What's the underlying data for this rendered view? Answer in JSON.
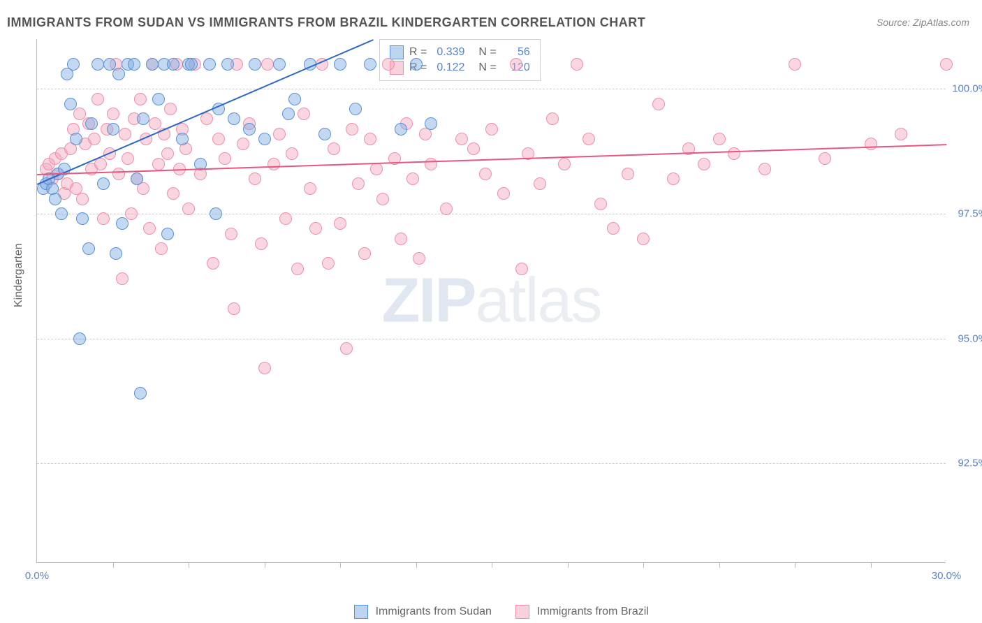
{
  "title": "IMMIGRANTS FROM SUDAN VS IMMIGRANTS FROM BRAZIL KINDERGARTEN CORRELATION CHART",
  "source": "Source: ZipAtlas.com",
  "ylabel": "Kindergarten",
  "watermark_bold": "ZIP",
  "watermark_light": "atlas",
  "chart": {
    "type": "scatter",
    "xlim": [
      0,
      30
    ],
    "ylim": [
      90.5,
      101.0
    ],
    "y_ticks": [
      92.5,
      95.0,
      97.5,
      100.0
    ],
    "y_tick_labels": [
      "92.5%",
      "95.0%",
      "97.5%",
      "100.0%"
    ],
    "x_tick_labels": [
      "0.0%",
      "30.0%"
    ],
    "x_minor_ticks": [
      2.5,
      5.0,
      7.5,
      10.0,
      12.5,
      15.0,
      17.5,
      20.0,
      22.5,
      25.0,
      27.5
    ],
    "background_color": "#ffffff",
    "grid_color": "#cccccc",
    "series": {
      "sudan": {
        "label": "Immigrants from Sudan",
        "color_fill": "rgba(123,171,227,0.45)",
        "color_stroke": "#5a8fd6",
        "marker_radius": 9,
        "R": 0.339,
        "N": 56,
        "trend": {
          "x1": 0,
          "y1": 98.1,
          "x2": 11.1,
          "y2": 101.0,
          "color": "#2d66c9"
        },
        "points": [
          [
            0.2,
            98.0
          ],
          [
            0.3,
            98.1
          ],
          [
            0.4,
            98.2
          ],
          [
            0.5,
            98.0
          ],
          [
            0.6,
            97.8
          ],
          [
            0.7,
            98.3
          ],
          [
            0.8,
            97.5
          ],
          [
            0.9,
            98.4
          ],
          [
            1.0,
            100.3
          ],
          [
            1.1,
            99.7
          ],
          [
            1.2,
            100.5
          ],
          [
            1.3,
            99.0
          ],
          [
            1.4,
            95.0
          ],
          [
            1.5,
            97.4
          ],
          [
            1.7,
            96.8
          ],
          [
            1.8,
            99.3
          ],
          [
            2.0,
            100.5
          ],
          [
            2.2,
            98.1
          ],
          [
            2.4,
            100.5
          ],
          [
            2.5,
            99.2
          ],
          [
            2.6,
            96.7
          ],
          [
            2.7,
            100.3
          ],
          [
            2.8,
            97.3
          ],
          [
            3.0,
            100.5
          ],
          [
            3.2,
            100.5
          ],
          [
            3.3,
            98.2
          ],
          [
            3.4,
            93.9
          ],
          [
            3.5,
            99.4
          ],
          [
            3.8,
            100.5
          ],
          [
            4.0,
            99.8
          ],
          [
            4.2,
            100.5
          ],
          [
            4.3,
            97.1
          ],
          [
            4.5,
            100.5
          ],
          [
            4.8,
            99.0
          ],
          [
            5.0,
            100.5
          ],
          [
            5.1,
            100.5
          ],
          [
            5.4,
            98.5
          ],
          [
            5.7,
            100.5
          ],
          [
            5.9,
            97.5
          ],
          [
            6.0,
            99.6
          ],
          [
            6.3,
            100.5
          ],
          [
            6.5,
            99.4
          ],
          [
            7.0,
            99.2
          ],
          [
            7.2,
            100.5
          ],
          [
            7.5,
            99.0
          ],
          [
            8.0,
            100.5
          ],
          [
            8.3,
            99.5
          ],
          [
            8.5,
            99.8
          ],
          [
            9.0,
            100.5
          ],
          [
            9.5,
            99.1
          ],
          [
            10.0,
            100.5
          ],
          [
            10.5,
            99.6
          ],
          [
            11.0,
            100.5
          ],
          [
            12.0,
            99.2
          ],
          [
            12.5,
            100.5
          ],
          [
            13.0,
            99.3
          ]
        ]
      },
      "brazil": {
        "label": "Immigrants from Brazil",
        "color_fill": "rgba(244,164,186,0.45)",
        "color_stroke": "#eb8fab",
        "marker_radius": 9,
        "R": 0.122,
        "N": 120,
        "trend": {
          "x1": 0,
          "y1": 98.3,
          "x2": 30,
          "y2": 98.9,
          "color": "#e6567e"
        },
        "points": [
          [
            0.3,
            98.4
          ],
          [
            0.4,
            98.5
          ],
          [
            0.5,
            98.2
          ],
          [
            0.6,
            98.6
          ],
          [
            0.7,
            98.3
          ],
          [
            0.8,
            98.7
          ],
          [
            0.9,
            97.9
          ],
          [
            1.0,
            98.1
          ],
          [
            1.1,
            98.8
          ],
          [
            1.2,
            99.2
          ],
          [
            1.3,
            98.0
          ],
          [
            1.4,
            99.5
          ],
          [
            1.5,
            97.8
          ],
          [
            1.6,
            98.9
          ],
          [
            1.7,
            99.3
          ],
          [
            1.8,
            98.4
          ],
          [
            1.9,
            99.0
          ],
          [
            2.0,
            99.8
          ],
          [
            2.1,
            98.5
          ],
          [
            2.2,
            97.4
          ],
          [
            2.3,
            99.2
          ],
          [
            2.4,
            98.7
          ],
          [
            2.5,
            99.5
          ],
          [
            2.6,
            100.5
          ],
          [
            2.7,
            98.3
          ],
          [
            2.8,
            96.2
          ],
          [
            2.9,
            99.1
          ],
          [
            3.0,
            98.6
          ],
          [
            3.1,
            97.5
          ],
          [
            3.2,
            99.4
          ],
          [
            3.3,
            98.2
          ],
          [
            3.4,
            99.8
          ],
          [
            3.5,
            98.0
          ],
          [
            3.6,
            99.0
          ],
          [
            3.7,
            97.2
          ],
          [
            3.8,
            100.5
          ],
          [
            3.9,
            99.3
          ],
          [
            4.0,
            98.5
          ],
          [
            4.1,
            96.8
          ],
          [
            4.2,
            99.1
          ],
          [
            4.3,
            98.7
          ],
          [
            4.4,
            99.6
          ],
          [
            4.5,
            97.9
          ],
          [
            4.6,
            100.5
          ],
          [
            4.7,
            98.4
          ],
          [
            4.8,
            99.2
          ],
          [
            4.9,
            98.8
          ],
          [
            5.0,
            97.6
          ],
          [
            5.2,
            100.5
          ],
          [
            5.4,
            98.3
          ],
          [
            5.6,
            99.4
          ],
          [
            5.8,
            96.5
          ],
          [
            6.0,
            99.0
          ],
          [
            6.2,
            98.6
          ],
          [
            6.4,
            97.1
          ],
          [
            6.5,
            95.6
          ],
          [
            6.6,
            100.5
          ],
          [
            6.8,
            98.9
          ],
          [
            7.0,
            99.3
          ],
          [
            7.2,
            98.2
          ],
          [
            7.4,
            96.9
          ],
          [
            7.5,
            94.4
          ],
          [
            7.6,
            100.5
          ],
          [
            7.8,
            98.5
          ],
          [
            8.0,
            99.1
          ],
          [
            8.2,
            97.4
          ],
          [
            8.4,
            98.7
          ],
          [
            8.6,
            96.4
          ],
          [
            8.8,
            99.5
          ],
          [
            9.0,
            98.0
          ],
          [
            9.2,
            97.2
          ],
          [
            9.4,
            100.5
          ],
          [
            9.6,
            96.5
          ],
          [
            9.8,
            98.8
          ],
          [
            10.0,
            97.3
          ],
          [
            10.2,
            94.8
          ],
          [
            10.4,
            99.2
          ],
          [
            10.6,
            98.1
          ],
          [
            10.8,
            96.7
          ],
          [
            11.0,
            99.0
          ],
          [
            11.2,
            98.4
          ],
          [
            11.4,
            97.8
          ],
          [
            11.6,
            100.5
          ],
          [
            11.8,
            98.6
          ],
          [
            12.0,
            97.0
          ],
          [
            12.2,
            99.3
          ],
          [
            12.4,
            98.2
          ],
          [
            12.6,
            96.6
          ],
          [
            12.8,
            99.1
          ],
          [
            13.0,
            98.5
          ],
          [
            13.5,
            97.6
          ],
          [
            14.0,
            99.0
          ],
          [
            14.4,
            98.8
          ],
          [
            14.8,
            98.3
          ],
          [
            15.0,
            99.2
          ],
          [
            15.4,
            97.9
          ],
          [
            15.8,
            100.5
          ],
          [
            16.0,
            96.4
          ],
          [
            16.2,
            98.7
          ],
          [
            16.6,
            98.1
          ],
          [
            17.0,
            99.4
          ],
          [
            17.4,
            98.5
          ],
          [
            17.8,
            100.5
          ],
          [
            18.2,
            99.0
          ],
          [
            18.6,
            97.7
          ],
          [
            19.0,
            97.2
          ],
          [
            19.5,
            98.3
          ],
          [
            20.0,
            97.0
          ],
          [
            20.5,
            99.7
          ],
          [
            21.0,
            98.2
          ],
          [
            21.5,
            98.8
          ],
          [
            22.0,
            98.5
          ],
          [
            22.5,
            99.0
          ],
          [
            23.0,
            98.7
          ],
          [
            24.0,
            98.4
          ],
          [
            25.0,
            100.5
          ],
          [
            26.0,
            98.6
          ],
          [
            27.5,
            98.9
          ],
          [
            28.5,
            99.1
          ],
          [
            30.0,
            100.5
          ]
        ]
      }
    }
  },
  "legend_top": {
    "r_label": "R =",
    "n_label": "N ="
  },
  "legend_bottom": {
    "sudan_label": "Immigrants from Sudan",
    "brazil_label": "Immigrants from Brazil"
  }
}
